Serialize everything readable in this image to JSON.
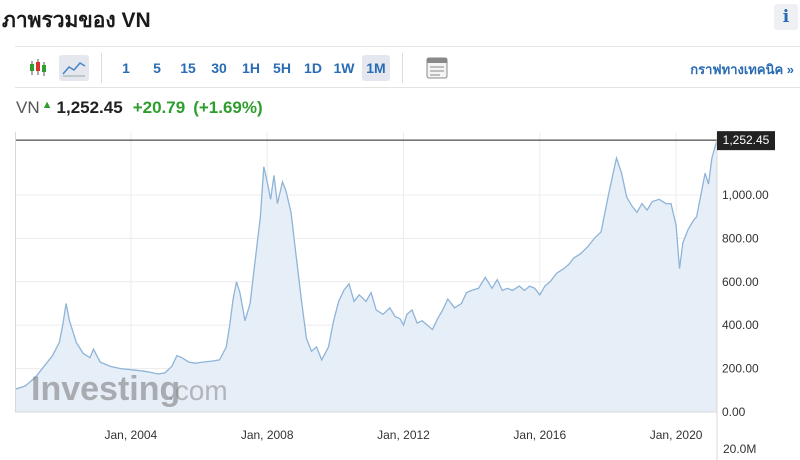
{
  "header": {
    "title": "ภาพรวมของ VN",
    "info_icon": "info-icon"
  },
  "toolbar": {
    "candlestick_icon": "candlestick-icon",
    "line_chart_icon": "line-chart-icon",
    "intervals": [
      "1",
      "5",
      "15",
      "30",
      "1H",
      "5H",
      "1D",
      "1W",
      "1M"
    ],
    "active_interval": "1M",
    "calendar_icon": "calendar-icon",
    "technical_chart_link": "กราฟทางเทคนิค »"
  },
  "quote": {
    "symbol": "VN",
    "price": "1,252.45",
    "change": "+20.79",
    "change_pct": "(+1.69%)",
    "up_color": "#2e9e2e"
  },
  "chart_data": {
    "type": "area",
    "title": "",
    "xlabel": "",
    "ylabel": "",
    "x_ticks": [
      "Jan, 2004",
      "Jan, 2008",
      "Jan, 2012",
      "Jan, 2016",
      "Jan, 2020"
    ],
    "y_ticks": [
      "0.00",
      "200.00",
      "400.00",
      "600.00",
      "800.00",
      "1,000.00"
    ],
    "volume_label": "20.0M",
    "ylim": [
      0,
      1290
    ],
    "xlim": [
      2000.6,
      2021.2
    ],
    "current_value_label": "1,252.45",
    "current_value": 1252.45,
    "series_color": "#8fb4d8",
    "fill_color": "#e6eef7",
    "watermark": "Investing",
    "watermark_suffix": ".com",
    "series": [
      {
        "values": [
          [
            2000.6,
            105
          ],
          [
            2000.9,
            120
          ],
          [
            2001.2,
            160
          ],
          [
            2001.5,
            220
          ],
          [
            2001.7,
            260
          ],
          [
            2001.9,
            320
          ],
          [
            2002.0,
            400
          ],
          [
            2002.1,
            500
          ],
          [
            2002.2,
            420
          ],
          [
            2002.4,
            320
          ],
          [
            2002.6,
            270
          ],
          [
            2002.8,
            250
          ],
          [
            2002.9,
            290
          ],
          [
            2003.1,
            230
          ],
          [
            2003.4,
            210
          ],
          [
            2003.7,
            200
          ],
          [
            2004.0,
            195
          ],
          [
            2004.3,
            190
          ],
          [
            2004.5,
            185
          ],
          [
            2004.8,
            175
          ],
          [
            2005.0,
            180
          ],
          [
            2005.2,
            210
          ],
          [
            2005.35,
            260
          ],
          [
            2005.5,
            250
          ],
          [
            2005.7,
            230
          ],
          [
            2005.9,
            225
          ],
          [
            2006.1,
            230
          ],
          [
            2006.4,
            235
          ],
          [
            2006.6,
            240
          ],
          [
            2006.8,
            300
          ],
          [
            2006.9,
            400
          ],
          [
            2007.0,
            520
          ],
          [
            2007.1,
            600
          ],
          [
            2007.2,
            550
          ],
          [
            2007.35,
            420
          ],
          [
            2007.5,
            500
          ],
          [
            2007.65,
            700
          ],
          [
            2007.8,
            900
          ],
          [
            2007.9,
            1130
          ],
          [
            2008.0,
            1060
          ],
          [
            2008.1,
            980
          ],
          [
            2008.2,
            1090
          ],
          [
            2008.3,
            960
          ],
          [
            2008.45,
            1060
          ],
          [
            2008.55,
            1020
          ],
          [
            2008.7,
            920
          ],
          [
            2008.85,
            720
          ],
          [
            2009.0,
            520
          ],
          [
            2009.15,
            340
          ],
          [
            2009.3,
            280
          ],
          [
            2009.45,
            300
          ],
          [
            2009.6,
            240
          ],
          [
            2009.8,
            300
          ],
          [
            2009.95,
            420
          ],
          [
            2010.1,
            510
          ],
          [
            2010.25,
            560
          ],
          [
            2010.4,
            590
          ],
          [
            2010.55,
            510
          ],
          [
            2010.7,
            540
          ],
          [
            2010.9,
            510
          ],
          [
            2011.05,
            550
          ],
          [
            2011.2,
            470
          ],
          [
            2011.4,
            450
          ],
          [
            2011.6,
            480
          ],
          [
            2011.75,
            440
          ],
          [
            2011.9,
            430
          ],
          [
            2012.0,
            400
          ],
          [
            2012.1,
            450
          ],
          [
            2012.25,
            470
          ],
          [
            2012.4,
            410
          ],
          [
            2012.55,
            420
          ],
          [
            2012.7,
            400
          ],
          [
            2012.85,
            380
          ],
          [
            2013.0,
            430
          ],
          [
            2013.15,
            470
          ],
          [
            2013.3,
            520
          ],
          [
            2013.5,
            480
          ],
          [
            2013.7,
            500
          ],
          [
            2013.85,
            550
          ],
          [
            2014.0,
            560
          ],
          [
            2014.2,
            570
          ],
          [
            2014.4,
            620
          ],
          [
            2014.6,
            570
          ],
          [
            2014.75,
            610
          ],
          [
            2014.9,
            560
          ],
          [
            2015.05,
            570
          ],
          [
            2015.2,
            560
          ],
          [
            2015.4,
            580
          ],
          [
            2015.55,
            560
          ],
          [
            2015.7,
            580
          ],
          [
            2015.85,
            570
          ],
          [
            2016.0,
            540
          ],
          [
            2016.15,
            580
          ],
          [
            2016.3,
            600
          ],
          [
            2016.5,
            640
          ],
          [
            2016.7,
            660
          ],
          [
            2016.85,
            680
          ],
          [
            2017.0,
            710
          ],
          [
            2017.2,
            730
          ],
          [
            2017.4,
            760
          ],
          [
            2017.6,
            800
          ],
          [
            2017.8,
            830
          ],
          [
            2018.0,
            990
          ],
          [
            2018.15,
            1100
          ],
          [
            2018.25,
            1170
          ],
          [
            2018.4,
            1100
          ],
          [
            2018.55,
            990
          ],
          [
            2018.7,
            950
          ],
          [
            2018.85,
            920
          ],
          [
            2019.0,
            960
          ],
          [
            2019.15,
            930
          ],
          [
            2019.3,
            970
          ],
          [
            2019.5,
            980
          ],
          [
            2019.7,
            960
          ],
          [
            2019.85,
            960
          ],
          [
            2020.0,
            860
          ],
          [
            2020.1,
            660
          ],
          [
            2020.2,
            780
          ],
          [
            2020.35,
            840
          ],
          [
            2020.5,
            880
          ],
          [
            2020.6,
            900
          ],
          [
            2020.75,
            1020
          ],
          [
            2020.85,
            1100
          ],
          [
            2020.95,
            1050
          ],
          [
            2021.05,
            1170
          ],
          [
            2021.2,
            1252
          ]
        ]
      }
    ]
  }
}
